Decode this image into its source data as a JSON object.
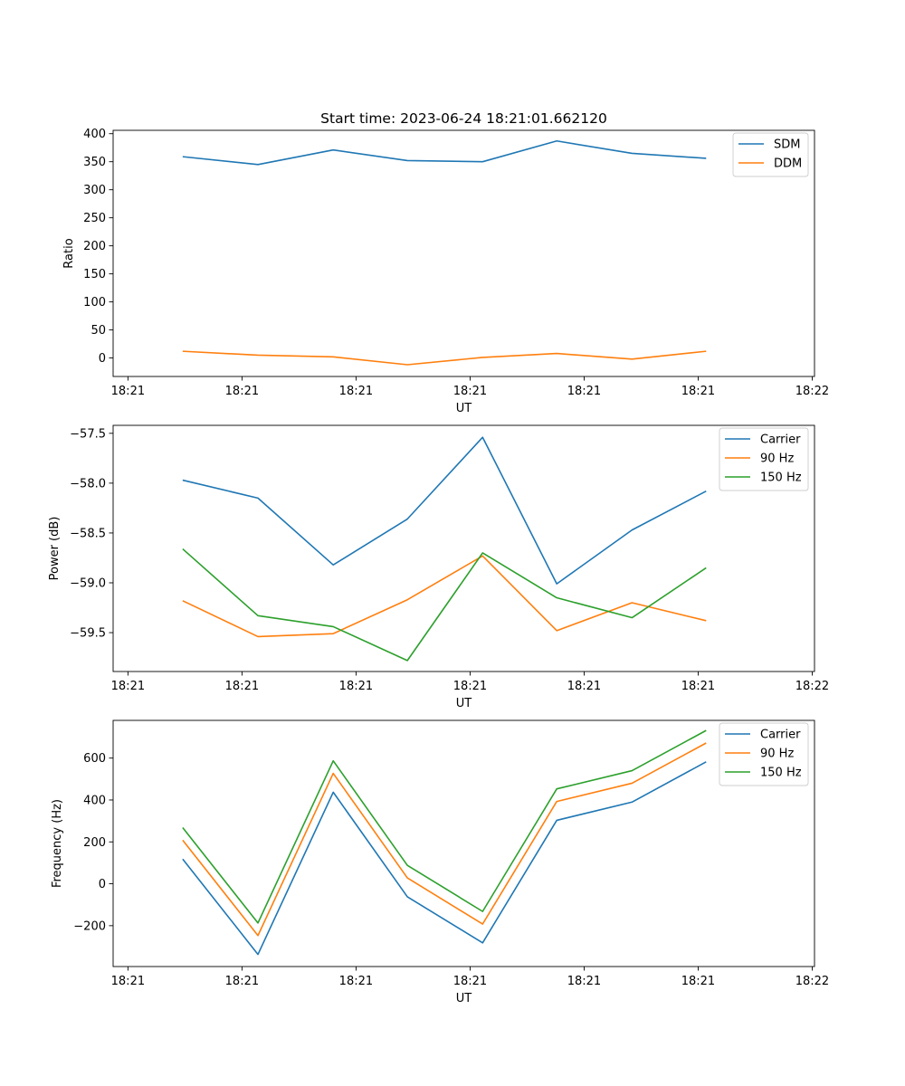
{
  "figure_title": "Start time: 2023-06-24 18:21:01.662120",
  "colors": {
    "blue": "#1f77b4",
    "orange": "#ff7f0e",
    "green": "#2ca02c"
  },
  "chart_data": [
    {
      "type": "line",
      "title": "Start time: 2023-06-24 18:21:01.662120",
      "xlabel": "UT",
      "ylabel": "Ratio",
      "x_tick_labels": [
        "18:21",
        "18:21",
        "18:21",
        "18:21",
        "18:21",
        "18:21",
        "18:22"
      ],
      "x_tick_positions": [
        0,
        1,
        2,
        3,
        4,
        5,
        6
      ],
      "xlim": [
        -0.13,
        6.02
      ],
      "x": [
        0.48,
        1.14,
        1.8,
        2.45,
        3.11,
        3.76,
        4.42,
        5.07
      ],
      "ylim": [
        -33,
        406
      ],
      "y_ticks": [
        0,
        50,
        100,
        150,
        200,
        250,
        300,
        350,
        400
      ],
      "y_tick_labels": [
        "0",
        "50",
        "100",
        "150",
        "200",
        "250",
        "300",
        "350",
        "400"
      ],
      "legend_position": "top-right",
      "grid": false,
      "series": [
        {
          "name": "SDM",
          "color": "#1f77b4",
          "values": [
            359,
            345,
            371,
            352,
            350,
            387,
            365,
            356
          ]
        },
        {
          "name": "DDM",
          "color": "#ff7f0e",
          "values": [
            12,
            5,
            2,
            -12,
            1,
            8,
            -2,
            12
          ]
        }
      ]
    },
    {
      "type": "line",
      "title": "",
      "xlabel": "UT",
      "ylabel": "Power (dB)",
      "x_tick_labels": [
        "18:21",
        "18:21",
        "18:21",
        "18:21",
        "18:21",
        "18:21",
        "18:22"
      ],
      "x_tick_positions": [
        0,
        1,
        2,
        3,
        4,
        5,
        6
      ],
      "xlim": [
        -0.13,
        6.02
      ],
      "x": [
        0.48,
        1.14,
        1.8,
        2.45,
        3.11,
        3.76,
        4.42,
        5.07
      ],
      "ylim": [
        -59.89,
        -57.42
      ],
      "y_ticks": [
        -59.5,
        -59.0,
        -58.5,
        -58.0,
        -57.5
      ],
      "y_tick_labels": [
        "−59.5",
        "−59.0",
        "−58.5",
        "−58.0",
        "−57.5"
      ],
      "legend_position": "top-right",
      "grid": false,
      "series": [
        {
          "name": "Carrier",
          "color": "#1f77b4",
          "values": [
            -57.97,
            -58.15,
            -58.82,
            -58.36,
            -57.54,
            -59.01,
            -58.47,
            -58.08
          ]
        },
        {
          "name": "90 Hz",
          "color": "#ff7f0e",
          "values": [
            -59.18,
            -59.54,
            -59.51,
            -59.17,
            -58.73,
            -59.48,
            -59.2,
            -59.38
          ]
        },
        {
          "name": "150 Hz",
          "color": "#2ca02c",
          "values": [
            -58.66,
            -59.33,
            -59.44,
            -59.78,
            -58.7,
            -59.15,
            -59.35,
            -58.85
          ]
        }
      ]
    },
    {
      "type": "line",
      "title": "",
      "xlabel": "UT",
      "ylabel": "Frequency (Hz)",
      "x_tick_labels": [
        "18:21",
        "18:21",
        "18:21",
        "18:21",
        "18:21",
        "18:21",
        "18:22"
      ],
      "x_tick_positions": [
        0,
        1,
        2,
        3,
        4,
        5,
        6
      ],
      "xlim": [
        -0.13,
        6.02
      ],
      "x": [
        0.48,
        1.14,
        1.8,
        2.45,
        3.11,
        3.76,
        4.42,
        5.07
      ],
      "ylim": [
        -395,
        780
      ],
      "y_ticks": [
        -200,
        0,
        200,
        400,
        600
      ],
      "y_tick_labels": [
        "−200",
        "0",
        "200",
        "400",
        "600"
      ],
      "legend_position": "top-right",
      "grid": false,
      "series": [
        {
          "name": "Carrier",
          "color": "#1f77b4",
          "values": [
            118,
            -337,
            437,
            -62,
            -282,
            303,
            390,
            582
          ]
        },
        {
          "name": "90 Hz",
          "color": "#ff7f0e",
          "values": [
            208,
            -247,
            527,
            28,
            -192,
            393,
            480,
            672
          ]
        },
        {
          "name": "150 Hz",
          "color": "#2ca02c",
          "values": [
            268,
            -187,
            587,
            88,
            -132,
            453,
            540,
            732
          ]
        }
      ]
    }
  ]
}
